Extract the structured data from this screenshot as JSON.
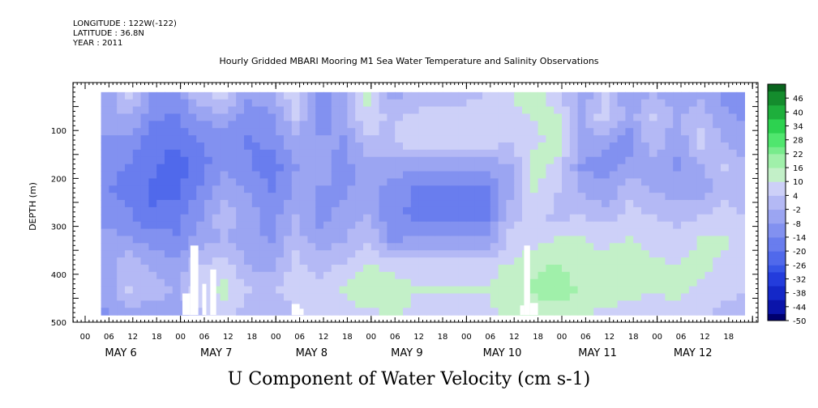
{
  "header": {
    "longitude": "LONGITUDE : 122W(-122)",
    "latitude": "LATITUDE : 36.8N",
    "year": "YEAR : 2011"
  },
  "chart_data": {
    "type": "heatmap",
    "title": "Hourly Gridded MBARI Mooring M1 Sea Water Temperature and Salinity Observations",
    "xlabel": "U Component of Water Velocity (cm s-1)",
    "ylabel": "DEPTH (m)",
    "ylim": [
      500,
      0
    ],
    "yticks": [
      100,
      200,
      300,
      400,
      500
    ],
    "hour_ticks": [
      "00",
      "06",
      "12",
      "18",
      "00",
      "06",
      "12",
      "18",
      "00",
      "06",
      "12",
      "18",
      "00",
      "06",
      "12",
      "18",
      "00",
      "06",
      "12",
      "18",
      "00",
      "06",
      "12",
      "18",
      "00",
      "06",
      "12",
      "18"
    ],
    "days": [
      "MAY  6",
      "MAY  7",
      "MAY  8",
      "MAY  9",
      "MAY 10",
      "MAY 11",
      "MAY 12"
    ],
    "colorbar": {
      "labels": [
        "46",
        "40",
        "34",
        "28",
        "22",
        "16",
        "10",
        "4",
        "-2",
        "-8",
        "-14",
        "-20",
        "-26",
        "-32",
        "-38",
        "-44",
        "-50"
      ],
      "range": [
        -50,
        52
      ],
      "step": 6
    },
    "data_depth_range": [
      20,
      485
    ],
    "time_range_hours": [
      4,
      166
    ],
    "columns": [
      {
        "t": 5,
        "v": [
          -6,
          -5,
          -8,
          -10,
          -12,
          -9,
          -6,
          -4,
          -6,
          -8
        ]
      },
      {
        "t": 11,
        "v": [
          6,
          -2,
          -10,
          -14,
          -16,
          -12,
          -6,
          2,
          4,
          -4
        ]
      },
      {
        "t": 17,
        "v": [
          -8,
          -12,
          -16,
          -18,
          -20,
          -18,
          -10,
          -4,
          2,
          -6
        ]
      },
      {
        "t": 23,
        "v": [
          -10,
          -14,
          -18,
          -22,
          -20,
          -16,
          -12,
          -6,
          -2,
          -8
        ]
      },
      {
        "t": 29,
        "v": [
          4,
          -6,
          -14,
          -16,
          -12,
          -8,
          -4,
          4,
          8,
          2
        ]
      },
      {
        "t": 35,
        "v": [
          8,
          -4,
          -10,
          -8,
          -4,
          2,
          -2,
          6,
          12,
          6
        ]
      },
      {
        "t": 41,
        "v": [
          -6,
          -10,
          -14,
          -12,
          -8,
          -4,
          -6,
          -2,
          4,
          0
        ]
      },
      {
        "t": 47,
        "v": [
          -4,
          -8,
          -12,
          -16,
          -14,
          -10,
          -8,
          -4,
          2,
          -2
        ]
      },
      {
        "t": 53,
        "v": [
          10,
          4,
          -4,
          -8,
          -6,
          -2,
          2,
          6,
          8,
          4
        ]
      },
      {
        "t": 59,
        "v": [
          -8,
          -12,
          -6,
          -4,
          -8,
          -10,
          -6,
          2,
          6,
          4
        ]
      },
      {
        "t": 65,
        "v": [
          -6,
          -4,
          -8,
          -10,
          -8,
          -6,
          -2,
          4,
          10,
          6
        ]
      },
      {
        "t": 71,
        "v": [
          12,
          8,
          2,
          -4,
          -6,
          -2,
          4,
          10,
          14,
          8
        ]
      },
      {
        "t": 77,
        "v": [
          -4,
          2,
          4,
          -4,
          -10,
          -12,
          -8,
          8,
          12,
          10
        ]
      },
      {
        "t": 83,
        "v": [
          -2,
          6,
          8,
          -6,
          -14,
          -14,
          -6,
          8,
          10,
          8
        ]
      },
      {
        "t": 89,
        "v": [
          0,
          6,
          8,
          -6,
          -14,
          -14,
          -6,
          8,
          10,
          8
        ]
      },
      {
        "t": 95,
        "v": [
          2,
          6,
          8,
          -6,
          -14,
          -14,
          -6,
          8,
          10,
          8
        ]
      },
      {
        "t": 101,
        "v": [
          4,
          6,
          8,
          -6,
          -14,
          -14,
          -6,
          8,
          10,
          8
        ]
      },
      {
        "t": 107,
        "v": [
          10,
          6,
          4,
          -2,
          -4,
          2,
          6,
          10,
          12,
          10
        ]
      },
      {
        "t": 113,
        "v": [
          14,
          10,
          8,
          12,
          10,
          6,
          8,
          14,
          16,
          12
        ]
      },
      {
        "t": 119,
        "v": [
          6,
          10,
          12,
          8,
          4,
          2,
          10,
          16,
          18,
          12
        ]
      },
      {
        "t": 125,
        "v": [
          -6,
          -2,
          -4,
          -8,
          -2,
          4,
          10,
          12,
          14,
          10
        ]
      },
      {
        "t": 131,
        "v": [
          4,
          8,
          -6,
          -10,
          -6,
          2,
          8,
          12,
          14,
          8
        ]
      },
      {
        "t": 137,
        "v": [
          -8,
          -4,
          -10,
          -6,
          2,
          6,
          10,
          14,
          12,
          6
        ]
      },
      {
        "t": 143,
        "v": [
          -2,
          4,
          2,
          -4,
          -2,
          4,
          8,
          10,
          10,
          4
        ]
      },
      {
        "t": 149,
        "v": [
          -6,
          -2,
          -6,
          -8,
          -4,
          2,
          6,
          10,
          12,
          6
        ]
      },
      {
        "t": 155,
        "v": [
          -4,
          2,
          6,
          -2,
          -6,
          4,
          10,
          12,
          8,
          4
        ]
      },
      {
        "t": 161,
        "v": [
          -10,
          -6,
          -2,
          4,
          2,
          6,
          10,
          8,
          6,
          2
        ]
      },
      {
        "t": 166,
        "v": [
          -14,
          -8,
          -4,
          -2,
          0,
          4,
          6,
          8,
          4,
          2
        ]
      }
    ],
    "missing_regions": [
      {
        "t0": 26.5,
        "t1": 28.5,
        "d0": 340,
        "d1": 485
      },
      {
        "t0": 24.5,
        "t1": 26.5,
        "d0": 440,
        "d1": 485
      },
      {
        "t0": 29.5,
        "t1": 30.5,
        "d0": 420,
        "d1": 485
      },
      {
        "t0": 31.5,
        "t1": 33,
        "d0": 390,
        "d1": 485
      },
      {
        "t0": 52,
        "t1": 54,
        "d0": 462,
        "d1": 485
      },
      {
        "t0": 54,
        "t1": 55,
        "d0": 472,
        "d1": 485
      },
      {
        "t0": 110.5,
        "t1": 112,
        "d0": 340,
        "d1": 485
      },
      {
        "t0": 112,
        "t1": 114,
        "d0": 460,
        "d1": 485
      },
      {
        "t0": 109.5,
        "t1": 110.5,
        "d0": 465,
        "d1": 485
      }
    ]
  }
}
